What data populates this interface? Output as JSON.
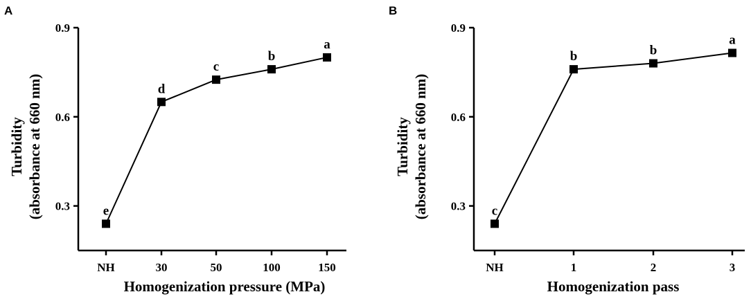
{
  "chart_data": [
    {
      "type": "line",
      "panel": "A",
      "categories": [
        "NH",
        "30",
        "50",
        "100",
        "150"
      ],
      "values": [
        0.24,
        0.65,
        0.725,
        0.76,
        0.8
      ],
      "significance": [
        "e",
        "d",
        "c",
        "b",
        "a"
      ],
      "xlabel": "Homogenization pressure (MPa)",
      "ylabel_line1": "Turbidity",
      "ylabel_line2": "(absorbance at 660 nm)",
      "ylim": [
        0.15,
        0.9
      ],
      "yticks": [
        0.3,
        0.6,
        0.9
      ],
      "ytick_labels": [
        "0.3",
        "0.6",
        "0.9"
      ],
      "grid": false,
      "marker": "square",
      "color": "#000000"
    },
    {
      "type": "line",
      "panel": "B",
      "categories": [
        "NH",
        "1",
        "2",
        "3"
      ],
      "values": [
        0.24,
        0.76,
        0.78,
        0.815
      ],
      "significance": [
        "c",
        "b",
        "b",
        "a"
      ],
      "xlabel": "Homogenization pass",
      "ylabel_line1": "Turbidity",
      "ylabel_line2": "(absorbance at 660 nm)",
      "ylim": [
        0.15,
        0.9
      ],
      "yticks": [
        0.3,
        0.6,
        0.9
      ],
      "ytick_labels": [
        "0.3",
        "0.6",
        "0.9"
      ],
      "grid": false,
      "marker": "square",
      "color": "#000000"
    }
  ]
}
